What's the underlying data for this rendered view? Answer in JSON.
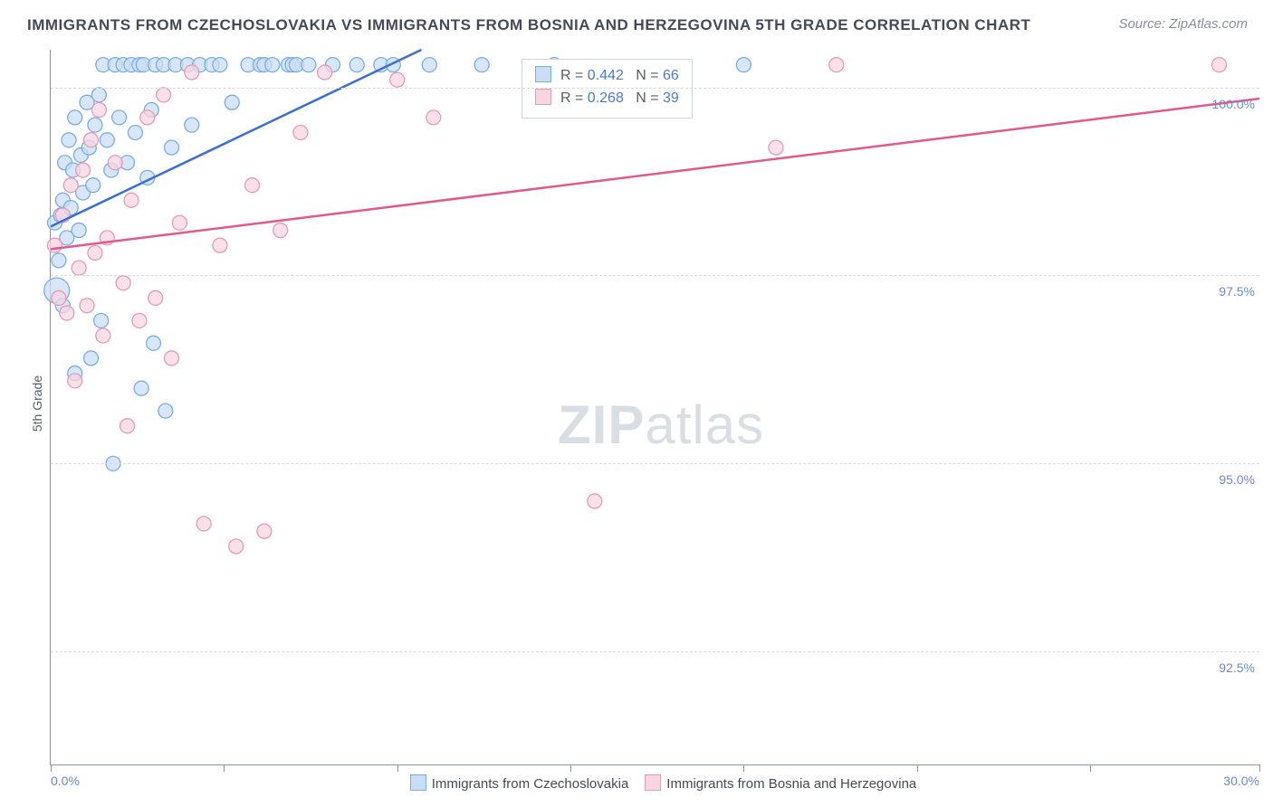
{
  "title": "IMMIGRANTS FROM CZECHOSLOVAKIA VS IMMIGRANTS FROM BOSNIA AND HERZEGOVINA 5TH GRADE CORRELATION CHART",
  "source_label": "Source: ZipAtlas.com",
  "y_axis_label": "5th Grade",
  "watermark_a": "ZIP",
  "watermark_b": "atlas",
  "chart": {
    "type": "scatter-with-trend",
    "xlim": [
      0.0,
      30.0
    ],
    "ylim": [
      91.0,
      100.5
    ],
    "x_tick_positions": [
      0,
      4.3,
      8.6,
      12.9,
      17.2,
      21.5,
      25.8,
      30.0
    ],
    "x_left_label": "0.0%",
    "x_right_label": "30.0%",
    "y_gridlines": [
      92.5,
      95.0,
      97.5,
      100.0
    ],
    "y_grid_labels": [
      "92.5%",
      "95.0%",
      "97.5%",
      "100.0%"
    ],
    "background_color": "#ffffff",
    "grid_color": "#d7dbe2",
    "axis_color": "#8893a8",
    "tick_label_color": "#6b89d4",
    "marker_radius": 8,
    "marker_radius_large": 14,
    "marker_stroke_width": 1.3,
    "trend_line_width": 2.5,
    "series": [
      {
        "id": "czech",
        "label": "Immigrants from Czechoslovakia",
        "fill_color": "#c9def5",
        "stroke_color": "#7aaee3",
        "line_color": "#3b6fd0",
        "R": "0.442",
        "N": "66",
        "trend": {
          "x1": 0.0,
          "y1": 98.15,
          "x2": 9.2,
          "y2": 100.5
        },
        "points": [
          {
            "x": 0.1,
            "y": 98.2
          },
          {
            "x": 0.15,
            "y": 97.3,
            "r": 14
          },
          {
            "x": 0.2,
            "y": 97.7
          },
          {
            "x": 0.25,
            "y": 98.3
          },
          {
            "x": 0.3,
            "y": 98.5
          },
          {
            "x": 0.35,
            "y": 99.0
          },
          {
            "x": 0.4,
            "y": 98.0
          },
          {
            "x": 0.45,
            "y": 99.3
          },
          {
            "x": 0.5,
            "y": 98.4
          },
          {
            "x": 0.55,
            "y": 98.9
          },
          {
            "x": 0.6,
            "y": 99.6
          },
          {
            "x": 0.7,
            "y": 98.1
          },
          {
            "x": 0.75,
            "y": 99.1
          },
          {
            "x": 0.8,
            "y": 98.6
          },
          {
            "x": 0.9,
            "y": 99.8
          },
          {
            "x": 0.95,
            "y": 99.2
          },
          {
            "x": 1.0,
            "y": 96.4
          },
          {
            "x": 1.05,
            "y": 98.7
          },
          {
            "x": 1.1,
            "y": 99.5
          },
          {
            "x": 1.2,
            "y": 99.9
          },
          {
            "x": 1.25,
            "y": 96.9
          },
          {
            "x": 1.3,
            "y": 100.3
          },
          {
            "x": 1.4,
            "y": 99.3
          },
          {
            "x": 1.5,
            "y": 98.9
          },
          {
            "x": 1.55,
            "y": 95.0
          },
          {
            "x": 1.6,
            "y": 100.3
          },
          {
            "x": 1.7,
            "y": 99.6
          },
          {
            "x": 1.8,
            "y": 100.3
          },
          {
            "x": 1.9,
            "y": 99.0
          },
          {
            "x": 2.0,
            "y": 100.3
          },
          {
            "x": 2.1,
            "y": 99.4
          },
          {
            "x": 2.2,
            "y": 100.3
          },
          {
            "x": 2.25,
            "y": 96.0
          },
          {
            "x": 2.3,
            "y": 100.3
          },
          {
            "x": 2.4,
            "y": 98.8
          },
          {
            "x": 2.5,
            "y": 99.7
          },
          {
            "x": 2.55,
            "y": 96.6
          },
          {
            "x": 2.6,
            "y": 100.3
          },
          {
            "x": 2.8,
            "y": 100.3
          },
          {
            "x": 2.85,
            "y": 95.7
          },
          {
            "x": 3.0,
            "y": 99.2
          },
          {
            "x": 3.1,
            "y": 100.3
          },
          {
            "x": 3.4,
            "y": 100.3
          },
          {
            "x": 3.5,
            "y": 99.5
          },
          {
            "x": 3.7,
            "y": 100.3
          },
          {
            "x": 4.0,
            "y": 100.3
          },
          {
            "x": 4.2,
            "y": 100.3
          },
          {
            "x": 4.5,
            "y": 99.8
          },
          {
            "x": 4.9,
            "y": 100.3
          },
          {
            "x": 5.2,
            "y": 100.3
          },
          {
            "x": 5.3,
            "y": 100.3
          },
          {
            "x": 5.5,
            "y": 100.3
          },
          {
            "x": 5.9,
            "y": 100.3
          },
          {
            "x": 6.0,
            "y": 100.3
          },
          {
            "x": 6.1,
            "y": 100.3
          },
          {
            "x": 6.4,
            "y": 100.3
          },
          {
            "x": 7.0,
            "y": 100.3
          },
          {
            "x": 7.6,
            "y": 100.3
          },
          {
            "x": 8.2,
            "y": 100.3
          },
          {
            "x": 8.5,
            "y": 100.3
          },
          {
            "x": 9.4,
            "y": 100.3
          },
          {
            "x": 10.7,
            "y": 100.3
          },
          {
            "x": 12.5,
            "y": 100.3
          },
          {
            "x": 17.2,
            "y": 100.3
          },
          {
            "x": 0.6,
            "y": 96.2
          },
          {
            "x": 0.3,
            "y": 97.1
          }
        ]
      },
      {
        "id": "bosnia",
        "label": "Immigrants from Bosnia and Herzegovina",
        "fill_color": "#f7d6e1",
        "stroke_color": "#e79ab7",
        "line_color": "#e05a8a",
        "R": "0.268",
        "N": "39",
        "trend": {
          "x1": 0.0,
          "y1": 97.85,
          "x2": 30.0,
          "y2": 99.85
        },
        "points": [
          {
            "x": 0.1,
            "y": 97.9
          },
          {
            "x": 0.2,
            "y": 97.2
          },
          {
            "x": 0.3,
            "y": 98.3
          },
          {
            "x": 0.4,
            "y": 97.0
          },
          {
            "x": 0.5,
            "y": 98.7
          },
          {
            "x": 0.6,
            "y": 96.1
          },
          {
            "x": 0.7,
            "y": 97.6
          },
          {
            "x": 0.8,
            "y": 98.9
          },
          {
            "x": 0.9,
            "y": 97.1
          },
          {
            "x": 1.0,
            "y": 99.3
          },
          {
            "x": 1.1,
            "y": 97.8
          },
          {
            "x": 1.2,
            "y": 99.7
          },
          {
            "x": 1.3,
            "y": 96.7
          },
          {
            "x": 1.4,
            "y": 98.0
          },
          {
            "x": 1.6,
            "y": 99.0
          },
          {
            "x": 1.8,
            "y": 97.4
          },
          {
            "x": 1.9,
            "y": 95.5
          },
          {
            "x": 2.0,
            "y": 98.5
          },
          {
            "x": 2.2,
            "y": 96.9
          },
          {
            "x": 2.4,
            "y": 99.6
          },
          {
            "x": 2.6,
            "y": 97.2
          },
          {
            "x": 2.8,
            "y": 99.9
          },
          {
            "x": 3.0,
            "y": 96.4
          },
          {
            "x": 3.2,
            "y": 98.2
          },
          {
            "x": 3.5,
            "y": 100.2
          },
          {
            "x": 3.8,
            "y": 94.2
          },
          {
            "x": 4.2,
            "y": 97.9
          },
          {
            "x": 4.6,
            "y": 93.9
          },
          {
            "x": 5.0,
            "y": 98.7
          },
          {
            "x": 5.3,
            "y": 94.1
          },
          {
            "x": 5.7,
            "y": 98.1
          },
          {
            "x": 6.2,
            "y": 99.4
          },
          {
            "x": 6.8,
            "y": 100.2
          },
          {
            "x": 8.6,
            "y": 100.1
          },
          {
            "x": 9.5,
            "y": 99.6
          },
          {
            "x": 13.5,
            "y": 94.5
          },
          {
            "x": 18.0,
            "y": 99.2
          },
          {
            "x": 19.5,
            "y": 100.3
          },
          {
            "x": 29.0,
            "y": 100.3
          }
        ]
      }
    ]
  },
  "stats_box": {
    "r_label": "R =",
    "n_label": "N ="
  },
  "bottom_legend": {}
}
